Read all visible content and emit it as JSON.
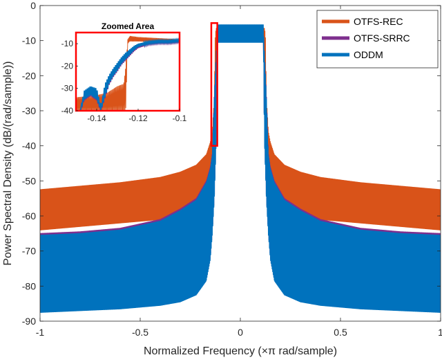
{
  "chart_data": {
    "type": "area",
    "xlabel": "Normalized Frequency  (×π rad/sample)",
    "ylabel": "Power Spectral Density (dB/(rad/sample))",
    "xlim": [
      -1,
      1
    ],
    "ylim": [
      -90,
      0
    ],
    "xticks": [
      "-1",
      "-0.5",
      "0",
      "0.5",
      "1"
    ],
    "yticks": [
      "0",
      "-10",
      "-20",
      "-30",
      "-40",
      "-50",
      "-60",
      "-70",
      "-80",
      "-90"
    ],
    "grid": false,
    "legend": "top-right",
    "series": [
      {
        "name": "OTFS-REC",
        "color": "#D95319",
        "envelope_x": [
          -1.0,
          -0.8,
          -0.6,
          -0.4,
          -0.3,
          -0.22,
          -0.17,
          -0.15,
          -0.14,
          -0.13,
          -0.125,
          -0.12,
          0.12,
          0.125,
          0.13,
          0.14,
          0.15,
          0.17,
          0.22,
          0.3,
          0.4,
          0.6,
          0.8,
          1.0
        ],
        "upper": [
          -52.5,
          -51.5,
          -50.5,
          -49.0,
          -47.5,
          -45.5,
          -42.5,
          -39.0,
          -36.0,
          -26.0,
          -8.0,
          -6.5,
          -6.5,
          -8.0,
          -26.0,
          -36.0,
          -39.0,
          -42.5,
          -45.5,
          -47.5,
          -49.0,
          -50.5,
          -51.5,
          -52.5
        ],
        "lower": [
          -64.0,
          -63.0,
          -62.0,
          -61.0,
          -60.0,
          -58.0,
          -54.0,
          -48.0,
          -44.0,
          -40.0,
          -34.0,
          -9.0,
          -9.0,
          -34.0,
          -40.0,
          -44.0,
          -48.0,
          -54.0,
          -58.0,
          -60.0,
          -61.0,
          -62.0,
          -63.0,
          -64.0
        ]
      },
      {
        "name": "OTFS-SRRC",
        "color": "#7E2F8E",
        "envelope_x": [
          -1.0,
          -0.8,
          -0.6,
          -0.4,
          -0.3,
          -0.22,
          -0.17,
          -0.15,
          -0.14,
          -0.13,
          -0.12,
          -0.115,
          0.115,
          0.12,
          0.13,
          0.14,
          0.15,
          0.17,
          0.22,
          0.3,
          0.4,
          0.6,
          0.8,
          1.0
        ],
        "upper": [
          -65.0,
          -64.5,
          -63.5,
          -61.0,
          -58.0,
          -55.0,
          -50.0,
          -46.0,
          -42.0,
          -25.0,
          -13.0,
          -8.5,
          -8.5,
          -13.0,
          -25.0,
          -42.0,
          -46.0,
          -50.0,
          -55.0,
          -58.0,
          -61.0,
          -63.5,
          -64.5,
          -65.0
        ],
        "lower": [
          -87.0,
          -86.5,
          -86.0,
          -85.0,
          -84.0,
          -82.0,
          -78.0,
          -72.0,
          -65.0,
          -55.0,
          -38.0,
          -10.0,
          -10.0,
          -38.0,
          -55.0,
          -65.0,
          -72.0,
          -78.0,
          -82.0,
          -84.0,
          -85.0,
          -86.0,
          -86.5,
          -87.0
        ]
      },
      {
        "name": "ODDM",
        "color": "#0072BD",
        "envelope_x": [
          -1.0,
          -0.8,
          -0.6,
          -0.4,
          -0.3,
          -0.22,
          -0.17,
          -0.15,
          -0.14,
          -0.13,
          -0.12,
          -0.115,
          0.115,
          0.12,
          0.13,
          0.14,
          0.15,
          0.17,
          0.22,
          0.3,
          0.4,
          0.6,
          0.8,
          1.0
        ],
        "upper": [
          -65.5,
          -65.0,
          -64.0,
          -61.5,
          -58.5,
          -55.5,
          -50.5,
          -46.5,
          -42.5,
          -25.5,
          -13.0,
          -5.5,
          -5.5,
          -13.0,
          -25.5,
          -42.5,
          -46.5,
          -50.5,
          -55.5,
          -58.5,
          -61.5,
          -64.0,
          -65.0,
          -65.5
        ],
        "lower": [
          -87.5,
          -87.0,
          -86.5,
          -85.5,
          -84.5,
          -82.5,
          -78.5,
          -72.5,
          -65.5,
          -55.5,
          -38.5,
          -10.5,
          -10.5,
          -38.5,
          -55.5,
          -65.5,
          -72.5,
          -78.5,
          -82.5,
          -84.5,
          -85.5,
          -86.5,
          -87.0,
          -87.5
        ]
      }
    ],
    "zoom_box": {
      "xlim": [
        -0.145,
        -0.115
      ],
      "ylim": [
        -40,
        -5
      ]
    },
    "inset": {
      "title": "Zoomed Area",
      "xlim": [
        -0.15,
        -0.1
      ],
      "ylim": [
        -40,
        -5
      ],
      "xticks": [
        "-0.14",
        "-0.12",
        "-0.1"
      ],
      "yticks": [
        "-10",
        "-20",
        "-30",
        "-40"
      ],
      "rec_x": [
        -0.15,
        -0.14,
        -0.135,
        -0.13,
        -0.127,
        -0.126,
        -0.125,
        -0.124,
        -0.12,
        -0.11,
        -0.1
      ],
      "rec_upper": [
        -34.0,
        -33.0,
        -32.0,
        -29.0,
        -28.0,
        -20.0,
        -8.0,
        -6.5,
        -7.0,
        -7.5,
        -8.0
      ],
      "rec_lower": [
        -40.0,
        -40.0,
        -40.0,
        -40.0,
        -40.0,
        -40.0,
        -10.0,
        -9.0,
        -9.0,
        -9.5,
        -9.5
      ],
      "oddm_x": [
        -0.148,
        -0.146,
        -0.143,
        -0.14,
        -0.138,
        -0.136,
        -0.134,
        -0.132,
        -0.13,
        -0.128,
        -0.126,
        -0.124,
        -0.122,
        -0.12,
        -0.115,
        -0.11,
        -0.105,
        -0.1
      ],
      "oddm_upper": [
        -40.0,
        -31.0,
        -29.0,
        -30.0,
        -38.0,
        -28.0,
        -24.0,
        -21.0,
        -18.5,
        -16.0,
        -14.0,
        -12.5,
        -11.0,
        -10.0,
        -9.0,
        -8.5,
        -8.5,
        -8.0
      ],
      "oddm_lower": [
        -40.0,
        -35.0,
        -33.0,
        -35.0,
        -40.0,
        -34.0,
        -28.0,
        -24.5,
        -22.0,
        -19.0,
        -17.0,
        -15.0,
        -13.0,
        -11.5,
        -10.0,
        -9.5,
        -9.5,
        -9.0
      ]
    }
  }
}
